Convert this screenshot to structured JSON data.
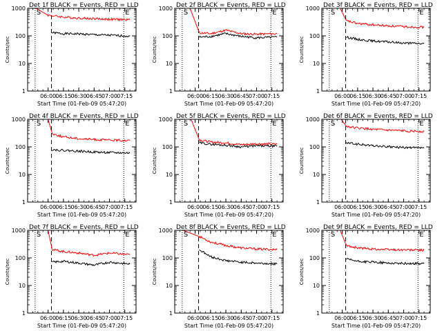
{
  "chart_data": [
    {
      "type": "line",
      "title": "Det 1f BLACK = Events, RED = LLD",
      "ylabel": "Counts/sec",
      "xlabel": "Start Time (01-Feb-09 05:47:20)",
      "yscale": "log",
      "ylim": [
        1,
        1000
      ],
      "x_ticks": [
        "06:00",
        "06:15",
        "06:30",
        "06:45",
        "07:00",
        "07:15"
      ],
      "y_ticks": [
        "1",
        "10",
        "100",
        "1000"
      ],
      "markers": [
        {
          "label": "S",
          "time": "05:47:20"
        },
        {
          "label": "E",
          "time": "07:14"
        }
      ],
      "series": [
        {
          "color": "#000000",
          "points": [
            [
              "06:04",
              130
            ],
            [
              "06:15",
              120
            ],
            [
              "06:30",
              118
            ],
            [
              "06:45",
              110
            ],
            [
              "07:00",
              105
            ],
            [
              "07:15",
              100
            ],
            [
              "07:20",
              98
            ]
          ]
        },
        {
          "color": "#ff0000",
          "points": [
            [
              "05:48",
              1000
            ],
            [
              "06:00",
              560
            ],
            [
              "06:15",
              480
            ],
            [
              "06:30",
              440
            ],
            [
              "06:45",
              420
            ],
            [
              "07:00",
              400
            ],
            [
              "07:20",
              380
            ]
          ]
        }
      ]
    },
    {
      "type": "line",
      "title": "Det 2f BLACK = Events, RED = LLD",
      "ylabel": "Counts/sec",
      "xlabel": "Start Time (01-Feb-09 05:47:20)",
      "yscale": "log",
      "ylim": [
        1,
        1000
      ],
      "x_ticks": [
        "06:00",
        "06:15",
        "06:30",
        "06:45",
        "07:00",
        "07:15"
      ],
      "y_ticks": [
        "1",
        "10",
        "100",
        "1000"
      ],
      "markers": [
        {
          "label": "S",
          "time": "05:47:20"
        },
        {
          "label": "E",
          "time": "07:14"
        }
      ],
      "series": [
        {
          "color": "#000000",
          "points": [
            [
              "06:04",
              90
            ],
            [
              "06:15",
              95
            ],
            [
              "06:30",
              120
            ],
            [
              "06:45",
              95
            ],
            [
              "07:00",
              85
            ],
            [
              "07:20",
              90
            ]
          ]
        },
        {
          "color": "#ff0000",
          "points": [
            [
              "05:55",
              1000
            ],
            [
              "06:04",
              130
            ],
            [
              "06:15",
              120
            ],
            [
              "06:30",
              160
            ],
            [
              "06:45",
              120
            ],
            [
              "07:00",
              115
            ],
            [
              "07:20",
              120
            ]
          ]
        }
      ]
    },
    {
      "type": "line",
      "title": "Det 3f BLACK = Events, RED = LLD",
      "ylabel": "Counts/sec",
      "xlabel": "Start Time (01-Feb-09 05:47:20)",
      "yscale": "log",
      "ylim": [
        1,
        1000
      ],
      "x_ticks": [
        "06:00",
        "06:15",
        "06:30",
        "06:45",
        "07:00",
        "07:15"
      ],
      "y_ticks": [
        "1",
        "10",
        "100",
        "1000"
      ],
      "markers": [
        {
          "label": "S",
          "time": "05:47:20"
        },
        {
          "label": "E",
          "time": "07:14"
        }
      ],
      "series": [
        {
          "color": "#000000",
          "points": [
            [
              "06:04",
              90
            ],
            [
              "06:15",
              75
            ],
            [
              "06:30",
              65
            ],
            [
              "06:45",
              60
            ],
            [
              "07:00",
              55
            ],
            [
              "07:20",
              52
            ]
          ]
        },
        {
          "color": "#ff0000",
          "points": [
            [
              "05:58",
              1000
            ],
            [
              "06:04",
              350
            ],
            [
              "06:15",
              280
            ],
            [
              "06:30",
              250
            ],
            [
              "06:45",
              230
            ],
            [
              "07:00",
              215
            ],
            [
              "07:20",
              205
            ]
          ]
        }
      ]
    },
    {
      "type": "line",
      "title": "Det 4f BLACK = Events, RED = LLD",
      "ylabel": "Counts/sec",
      "xlabel": "Start Time (01-Feb-09 05:47:20)",
      "yscale": "log",
      "ylim": [
        1,
        1000
      ],
      "x_ticks": [
        "06:00",
        "06:15",
        "06:30",
        "06:45",
        "07:00",
        "07:15"
      ],
      "y_ticks": [
        "1",
        "10",
        "100",
        "1000"
      ],
      "markers": [
        {
          "label": "S",
          "time": "05:47:20"
        },
        {
          "label": "E",
          "time": "07:14"
        }
      ],
      "series": [
        {
          "color": "#000000",
          "points": [
            [
              "06:04",
              80
            ],
            [
              "06:15",
              75
            ],
            [
              "06:30",
              70
            ],
            [
              "06:45",
              65
            ],
            [
              "07:00",
              62
            ],
            [
              "07:20",
              60
            ]
          ]
        },
        {
          "color": "#ff0000",
          "points": [
            [
              "06:00",
              1000
            ],
            [
              "06:04",
              300
            ],
            [
              "06:15",
              230
            ],
            [
              "06:30",
              200
            ],
            [
              "06:45",
              185
            ],
            [
              "07:00",
              175
            ],
            [
              "07:20",
              170
            ]
          ]
        }
      ]
    },
    {
      "type": "line",
      "title": "Det 5f BLACK = Events, RED = LLD",
      "ylabel": "Counts/sec",
      "xlabel": "Start Time (01-Feb-09 05:47:20)",
      "yscale": "log",
      "ylim": [
        1,
        1000
      ],
      "x_ticks": [
        "06:00",
        "06:15",
        "06:30",
        "06:45",
        "07:00",
        "07:15"
      ],
      "y_ticks": [
        "1",
        "10",
        "100",
        "1000"
      ],
      "markers": [
        {
          "label": "S",
          "time": "05:47:20"
        },
        {
          "label": "E",
          "time": "07:14"
        }
      ],
      "series": [
        {
          "color": "#000000",
          "points": [
            [
              "06:04",
              140
            ],
            [
              "06:15",
              125
            ],
            [
              "06:30",
              115
            ],
            [
              "06:45",
              100
            ],
            [
              "07:00",
              110
            ],
            [
              "07:20",
              105
            ]
          ]
        },
        {
          "color": "#ff0000",
          "points": [
            [
              "05:56",
              1000
            ],
            [
              "06:04",
              180
            ],
            [
              "06:15",
              150
            ],
            [
              "06:30",
              140
            ],
            [
              "06:45",
              120
            ],
            [
              "07:00",
              130
            ],
            [
              "07:20",
              125
            ]
          ]
        }
      ]
    },
    {
      "type": "line",
      "title": "Det 6f BLACK = Events, RED = LLD",
      "ylabel": "Counts/sec",
      "xlabel": "Start Time (01-Feb-09 05:47:20)",
      "yscale": "log",
      "ylim": [
        1,
        1000
      ],
      "x_ticks": [
        "06:00",
        "06:15",
        "06:30",
        "06:45",
        "07:00",
        "07:15"
      ],
      "y_ticks": [
        "1",
        "10",
        "100",
        "1000"
      ],
      "markers": [
        {
          "label": "S",
          "time": "05:47:20"
        },
        {
          "label": "E",
          "time": "07:14"
        }
      ],
      "series": [
        {
          "color": "#000000",
          "points": [
            [
              "06:04",
              140
            ],
            [
              "06:15",
              125
            ],
            [
              "06:30",
              110
            ],
            [
              "06:45",
              100
            ],
            [
              "07:00",
              95
            ],
            [
              "07:20",
              90
            ]
          ]
        },
        {
          "color": "#ff0000",
          "points": [
            [
              "05:59",
              1000
            ],
            [
              "06:04",
              560
            ],
            [
              "06:15",
              480
            ],
            [
              "06:30",
              430
            ],
            [
              "06:45",
              400
            ],
            [
              "07:00",
              380
            ],
            [
              "07:20",
              360
            ]
          ]
        }
      ]
    },
    {
      "type": "line",
      "title": "Det 7f BLACK = Events, RED = LLD",
      "ylabel": "Counts/sec",
      "xlabel": "Start Time (01-Feb-09 05:47:20)",
      "yscale": "log",
      "ylim": [
        1,
        1000
      ],
      "x_ticks": [
        "06:00",
        "06:15",
        "06:30",
        "06:45",
        "07:00",
        "07:15"
      ],
      "y_ticks": [
        "1",
        "10",
        "100",
        "1000"
      ],
      "markers": [
        {
          "label": "S",
          "time": "05:47:20"
        },
        {
          "label": "E",
          "time": "07:14"
        }
      ],
      "series": [
        {
          "color": "#000000",
          "points": [
            [
              "06:04",
              70
            ],
            [
              "06:15",
              75
            ],
            [
              "06:30",
              65
            ],
            [
              "06:45",
              55
            ],
            [
              "07:00",
              70
            ],
            [
              "07:20",
              60
            ]
          ]
        },
        {
          "color": "#ff0000",
          "points": [
            [
              "06:00",
              1000
            ],
            [
              "06:04",
              200
            ],
            [
              "06:15",
              170
            ],
            [
              "06:30",
              150
            ],
            [
              "06:45",
              125
            ],
            [
              "07:00",
              150
            ],
            [
              "07:20",
              130
            ]
          ]
        }
      ]
    },
    {
      "type": "line",
      "title": "Det 8f BLACK = Events, RED = LLD",
      "ylabel": "Counts/sec",
      "xlabel": "Start Time (01-Feb-09 05:47:20)",
      "yscale": "log",
      "ylim": [
        1,
        1000
      ],
      "x_ticks": [
        "06:00",
        "06:15",
        "06:30",
        "06:45",
        "07:00",
        "07:15"
      ],
      "y_ticks": [
        "1",
        "10",
        "100",
        "1000"
      ],
      "markers": [
        {
          "label": "S",
          "time": "05:47:20"
        },
        {
          "label": "E",
          "time": "07:14"
        }
      ],
      "series": [
        {
          "color": "#000000",
          "points": [
            [
              "06:04",
              200
            ],
            [
              "06:15",
              110
            ],
            [
              "06:30",
              80
            ],
            [
              "06:45",
              70
            ],
            [
              "07:00",
              65
            ],
            [
              "07:20",
              60
            ]
          ]
        },
        {
          "color": "#ff0000",
          "points": [
            [
              "05:48",
              1000
            ],
            [
              "06:04",
              600
            ],
            [
              "06:15",
              380
            ],
            [
              "06:30",
              280
            ],
            [
              "06:45",
              230
            ],
            [
              "07:00",
              210
            ],
            [
              "07:20",
              200
            ]
          ]
        }
      ]
    },
    {
      "type": "line",
      "title": "Det 9f BLACK = Events, RED = LLD",
      "ylabel": "Counts/sec",
      "xlabel": "Start Time (01-Feb-09 05:47:20)",
      "yscale": "log",
      "ylim": [
        1,
        1000
      ],
      "x_ticks": [
        "06:00",
        "06:15",
        "06:30",
        "06:45",
        "07:00",
        "07:15"
      ],
      "y_ticks": [
        "1",
        "10",
        "100",
        "1000"
      ],
      "markers": [
        {
          "label": "S",
          "time": "05:47:20"
        },
        {
          "label": "E",
          "time": "07:14"
        }
      ],
      "series": [
        {
          "color": "#000000",
          "points": [
            [
              "06:04",
              90
            ],
            [
              "06:15",
              75
            ],
            [
              "06:30",
              70
            ],
            [
              "06:45",
              65
            ],
            [
              "07:00",
              63
            ],
            [
              "07:20",
              62
            ]
          ]
        },
        {
          "color": "#ff0000",
          "points": [
            [
              "05:58",
              1000
            ],
            [
              "06:04",
              280
            ],
            [
              "06:15",
              230
            ],
            [
              "06:30",
              210
            ],
            [
              "06:45",
              200
            ],
            [
              "07:00",
              195
            ],
            [
              "07:20",
              190
            ]
          ]
        }
      ]
    }
  ]
}
